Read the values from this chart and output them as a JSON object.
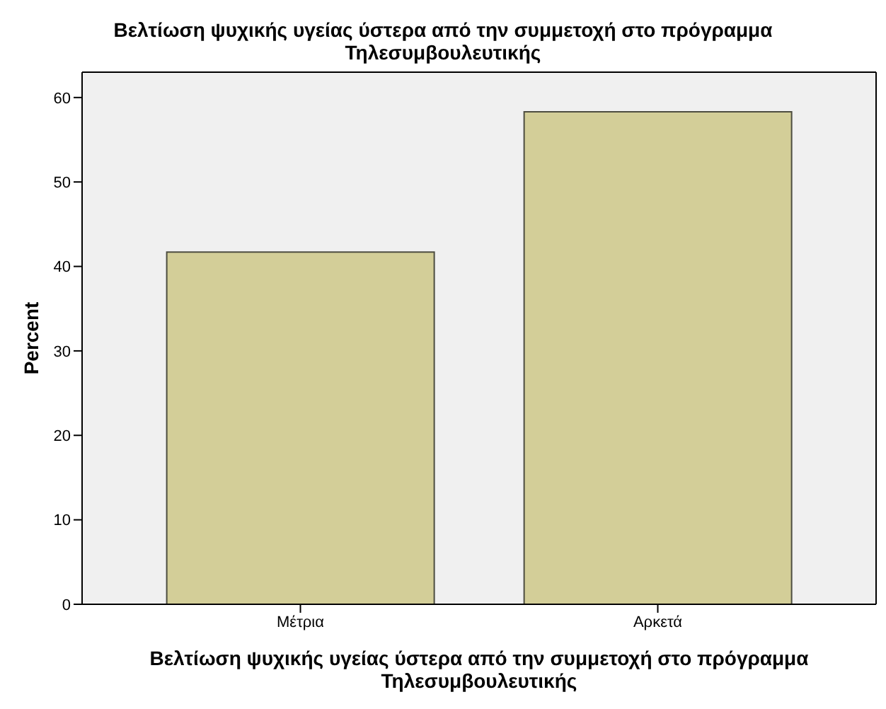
{
  "chart_data": {
    "type": "bar",
    "title": "Βελτίωση ψυχικής υγείας ύστερα από την συμμετοχή στο πρόγραμμα Τηλεσυμβουλευτικής",
    "xlabel": "Βελτίωση ψυχικής υγείας ύστερα από την συμμετοχή στο πρόγραμμα Τηλεσυμβουλευτικής",
    "ylabel": "Percent",
    "categories": [
      "Μέτρια",
      "Αρκετά"
    ],
    "values": [
      41.7,
      58.3
    ],
    "color": "#d3ce98",
    "ylim": [
      0,
      63
    ],
    "yticks": [
      0,
      10,
      20,
      30,
      40,
      50,
      60
    ]
  }
}
